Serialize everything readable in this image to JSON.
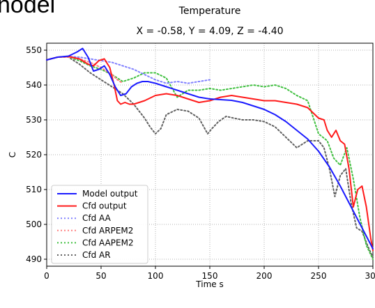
{
  "slide_fragment": "nodel",
  "colors": {
    "model_output": "#1a1aff",
    "cfd_output": "#ff1a1a",
    "cfd_aa": "#8080ff",
    "cfd_arpem2": "#ff8080",
    "cfd_aapem2": "#40c040",
    "cfd_ar": "#606060",
    "grid": "#b0b0b0"
  },
  "chart_data": {
    "type": "line",
    "title": "Temperature",
    "subtitle": "X = -0.58,  Y = 4.09,  Z = -4.40",
    "xlabel": "Time s",
    "ylabel": "C",
    "xlim": [
      0,
      300
    ],
    "ylim": [
      488,
      552
    ],
    "xticks": [
      "0",
      "50",
      "100",
      "150",
      "200",
      "250",
      "300"
    ],
    "yticks": [
      "490",
      "500",
      "510",
      "520",
      "530",
      "540",
      "550"
    ],
    "grid": true,
    "legend_position": "lower-left",
    "series": [
      {
        "name": "Model output",
        "style": "solid",
        "x": [
          0,
          10,
          20,
          28,
          33,
          38,
          43,
          48,
          53,
          58,
          63,
          68,
          73,
          78,
          83,
          88,
          93,
          100,
          110,
          120,
          130,
          140,
          150,
          160,
          170,
          180,
          190,
          200,
          210,
          220,
          230,
          240,
          250,
          260,
          270,
          280,
          290,
          300
        ],
        "y": [
          547.2,
          548,
          548.3,
          549.5,
          550.5,
          548,
          544,
          544.5,
          545.5,
          543,
          539.5,
          537,
          537.5,
          539.5,
          540.5,
          541,
          541,
          540.5,
          539.5,
          538.5,
          537.5,
          536.5,
          536,
          535.8,
          535.6,
          535,
          534,
          533,
          531.5,
          529.5,
          527,
          524.5,
          521,
          516.5,
          511,
          505,
          499,
          493
        ]
      },
      {
        "name": "Cfd output",
        "style": "solid",
        "x": [
          0,
          10,
          20,
          30,
          38,
          43,
          48,
          53,
          58,
          62,
          65,
          68,
          72,
          76,
          80,
          90,
          100,
          110,
          120,
          130,
          140,
          150,
          160,
          170,
          180,
          190,
          200,
          210,
          220,
          230,
          240,
          245,
          250,
          255,
          258,
          262,
          266,
          270,
          274,
          278,
          282,
          286,
          290,
          294,
          298,
          300
        ],
        "y": [
          547.2,
          548,
          548.2,
          547.5,
          546,
          545.5,
          547,
          547.5,
          545,
          540,
          535.5,
          534.5,
          535,
          534.5,
          534.5,
          535.5,
          537,
          537.5,
          537,
          536,
          535,
          535.5,
          536.5,
          537,
          536.5,
          536,
          535.5,
          535.5,
          535,
          534.5,
          533.5,
          532,
          530.5,
          530,
          527,
          525,
          527,
          524,
          523,
          516,
          505,
          510,
          511,
          505,
          496,
          492.5
        ]
      },
      {
        "name": "Cfd AA",
        "style": "dotted",
        "x": [
          0,
          10,
          20,
          30,
          40,
          50,
          60,
          70,
          80,
          90,
          100,
          110,
          120,
          130,
          140,
          150
        ],
        "y": [
          547.2,
          548,
          548.2,
          548,
          547.5,
          547,
          546.5,
          545.5,
          544.5,
          543,
          541.5,
          540.5,
          541,
          540.5,
          541,
          541.5
        ]
      },
      {
        "name": "Cfd ARPEM2",
        "style": "dotted",
        "x": [
          0,
          10,
          20,
          30,
          40,
          50,
          60,
          65,
          70
        ],
        "y": [
          547.2,
          548,
          548,
          547.5,
          546.5,
          545,
          543,
          541.5,
          540.5
        ]
      },
      {
        "name": "Cfd AAPEM2",
        "style": "dotted",
        "x": [
          0,
          10,
          20,
          30,
          40,
          50,
          60,
          70,
          80,
          90,
          100,
          110,
          120,
          130,
          140,
          150,
          160,
          170,
          180,
          190,
          200,
          210,
          220,
          230,
          240,
          250,
          258,
          264,
          270,
          276,
          282,
          288,
          294,
          300
        ],
        "y": [
          547.2,
          548,
          548,
          547,
          545.5,
          544.5,
          543,
          541,
          542,
          543.5,
          543.5,
          542,
          536.5,
          538.5,
          538.5,
          539,
          538.5,
          539,
          539.5,
          540,
          539.5,
          540,
          539,
          537,
          535.5,
          526,
          524,
          519,
          517,
          522,
          513,
          502,
          494,
          490
        ]
      },
      {
        "name": "Cfd AR",
        "style": "dotted",
        "x": [
          0,
          10,
          20,
          30,
          40,
          50,
          60,
          70,
          80,
          90,
          95,
          100,
          105,
          110,
          120,
          130,
          140,
          148,
          152,
          158,
          165,
          172,
          180,
          190,
          200,
          210,
          220,
          230,
          240,
          250,
          255,
          260,
          265,
          270,
          275,
          280,
          285,
          290,
          295,
          300
        ],
        "y": [
          547.2,
          548,
          548,
          546,
          543.5,
          541.5,
          539.5,
          537.5,
          534.5,
          530.5,
          528,
          526,
          527.5,
          531.5,
          533,
          532.5,
          530.5,
          526,
          527.5,
          529.5,
          531,
          530.5,
          530,
          530,
          529.5,
          528,
          525,
          522,
          524,
          524,
          522,
          516,
          508,
          514,
          516,
          506,
          499,
          498,
          494,
          490.5
        ]
      }
    ]
  }
}
